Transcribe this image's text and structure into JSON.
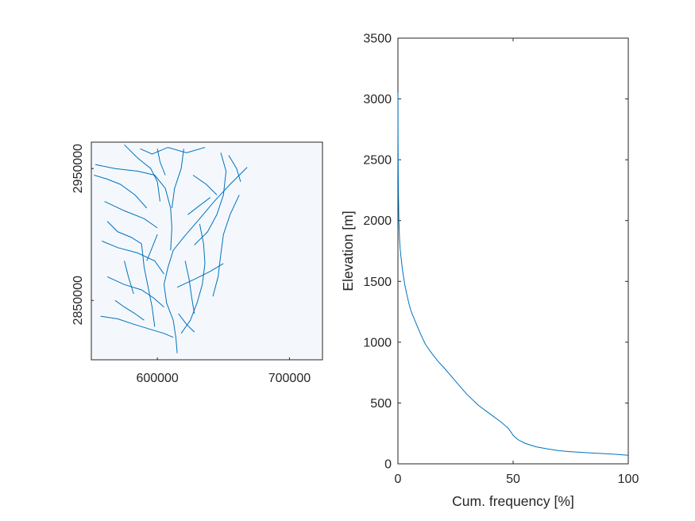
{
  "colors": {
    "stream": "#0072bd",
    "curve": "#0072bd",
    "map_bg": "#f4f8fd",
    "map_edge": "#10305a",
    "axis": "#262626"
  },
  "chart_data": [
    {
      "type": "map",
      "xlim": [
        550000,
        725000
      ],
      "ylim": [
        2805000,
        2970000
      ],
      "xticks": [
        600000,
        700000
      ],
      "xtick_labels": [
        "600000",
        "700000"
      ],
      "yticks": [
        2850000,
        2950000
      ],
      "ytick_labels": [
        "2850000",
        "2950000"
      ],
      "xlabel": "",
      "ylabel": "",
      "grid": false,
      "series": [
        {
          "values": [
            [
              668000,
              2951000
            ],
            [
              655000,
              2938000
            ],
            [
              643000,
              2925000
            ],
            [
              632000,
              2912000
            ],
            [
              620000,
              2898000
            ],
            [
              612000,
              2888000
            ],
            [
              608000,
              2875000
            ],
            [
              605000,
              2862000
            ],
            [
              607000,
              2848000
            ],
            [
              612000,
              2835000
            ],
            [
              614000,
              2822000
            ],
            [
              615000,
              2810000
            ]
          ]
        },
        {
          "values": [
            [
              553000,
              2953000
            ],
            [
              568000,
              2950000
            ],
            [
              585000,
              2948000
            ],
            [
              598000,
              2945000
            ],
            [
              606000,
              2935000
            ],
            [
              610000,
              2920000
            ],
            [
              611000,
              2905000
            ],
            [
              610000,
              2888000
            ]
          ]
        },
        {
          "values": [
            [
              575000,
              2968000
            ],
            [
              585000,
              2958000
            ],
            [
              595000,
              2950000
            ],
            [
              600000,
              2940000
            ],
            [
              602000,
              2925000
            ]
          ]
        },
        {
          "values": [
            [
              620000,
              2965000
            ],
            [
              618000,
              2950000
            ],
            [
              613000,
              2935000
            ],
            [
              611000,
              2920000
            ]
          ]
        },
        {
          "values": [
            [
              648000,
              2962000
            ],
            [
              652000,
              2948000
            ],
            [
              650000,
              2930000
            ],
            [
              645000,
              2915000
            ],
            [
              638000,
              2902000
            ],
            [
              628000,
              2892000
            ]
          ]
        },
        {
          "values": [
            [
              560000,
              2925000
            ],
            [
              575000,
              2918000
            ],
            [
              590000,
              2912000
            ],
            [
              600000,
              2905000
            ]
          ]
        },
        {
          "values": [
            [
              558000,
              2895000
            ],
            [
              570000,
              2890000
            ],
            [
              585000,
              2886000
            ],
            [
              598000,
              2880000
            ],
            [
              605000,
              2870000
            ]
          ]
        },
        {
          "values": [
            [
              562000,
              2868000
            ],
            [
              575000,
              2862000
            ],
            [
              588000,
              2858000
            ],
            [
              597000,
              2852000
            ],
            [
              605000,
              2845000
            ]
          ]
        },
        {
          "values": [
            [
              557000,
              2838000
            ],
            [
              570000,
              2836000
            ],
            [
              582000,
              2832000
            ],
            [
              595000,
              2828000
            ],
            [
              605000,
              2825000
            ],
            [
              612000,
              2822000
            ]
          ]
        },
        {
          "values": [
            [
              588000,
              2893000
            ],
            [
              590000,
              2875000
            ],
            [
              593000,
              2860000
            ],
            [
              596000,
              2845000
            ],
            [
              598000,
              2830000
            ]
          ]
        },
        {
          "values": [
            [
              632000,
              2908000
            ],
            [
              635000,
              2893000
            ],
            [
              636000,
              2878000
            ],
            [
              634000,
              2862000
            ],
            [
              630000,
              2848000
            ],
            [
              625000,
              2835000
            ],
            [
              618000,
              2825000
            ]
          ]
        },
        {
          "values": [
            [
              662000,
              2930000
            ],
            [
              655000,
              2915000
            ],
            [
              650000,
              2900000
            ],
            [
              648000,
              2885000
            ],
            [
              646000,
              2868000
            ],
            [
              642000,
              2853000
            ]
          ]
        },
        {
          "values": [
            [
              650000,
              2878000
            ],
            [
              640000,
              2872000
            ],
            [
              628000,
              2866000
            ],
            [
              615000,
              2860000
            ]
          ]
        },
        {
          "values": [
            [
              600000,
              2965000
            ],
            [
              602000,
              2955000
            ],
            [
              606000,
              2945000
            ]
          ]
        },
        {
          "values": [
            [
              627000,
              2945000
            ],
            [
              637000,
              2938000
            ],
            [
              645000,
              2930000
            ]
          ]
        },
        {
          "values": [
            [
              552000,
              2945000
            ],
            [
              562000,
              2942000
            ],
            [
              572000,
              2938000
            ],
            [
              583000,
              2930000
            ],
            [
              592000,
              2920000
            ]
          ]
        },
        {
          "values": [
            [
              562000,
              2910000
            ],
            [
              570000,
              2902000
            ],
            [
              580000,
              2898000
            ],
            [
              588000,
              2893000
            ]
          ]
        },
        {
          "values": [
            [
              575000,
              2880000
            ],
            [
              578000,
              2868000
            ],
            [
              582000,
              2855000
            ]
          ]
        },
        {
          "values": [
            [
              568000,
              2850000
            ],
            [
              575000,
              2845000
            ],
            [
              583000,
              2840000
            ],
            [
              590000,
              2835000
            ]
          ]
        },
        {
          "values": [
            [
              621000,
              2880000
            ],
            [
              624000,
              2866000
            ],
            [
              626000,
              2852000
            ],
            [
              628000,
              2840000
            ]
          ]
        },
        {
          "values": [
            [
              640000,
              2928000
            ],
            [
              632000,
              2922000
            ],
            [
              623000,
              2915000
            ]
          ]
        },
        {
          "values": [
            [
              587000,
              2965000
            ],
            [
              596000,
              2961000
            ],
            [
              608000,
              2966000
            ],
            [
              622000,
              2962000
            ],
            [
              636000,
              2966000
            ]
          ]
        },
        {
          "values": [
            [
              654000,
              2960000
            ],
            [
              660000,
              2950000
            ],
            [
              663000,
              2940000
            ]
          ]
        },
        {
          "values": [
            [
              600000,
              2900000
            ],
            [
              596000,
              2890000
            ],
            [
              592000,
              2880000
            ]
          ]
        },
        {
          "values": [
            [
              616000,
              2840000
            ],
            [
              622000,
              2832000
            ],
            [
              628000,
              2826000
            ]
          ]
        }
      ]
    },
    {
      "type": "line",
      "x": [
        0,
        0.02,
        0.05,
        0.1,
        0.2,
        0.4,
        0.7,
        1,
        1.5,
        2,
        3,
        4,
        5,
        6,
        8,
        10,
        12,
        15,
        18,
        20,
        25,
        30,
        35,
        40,
        45,
        48,
        50,
        52,
        55,
        60,
        65,
        70,
        75,
        80,
        85,
        90,
        95,
        100
      ],
      "y": [
        3050,
        2950,
        2750,
        2500,
        2250,
        2000,
        1850,
        1760,
        1670,
        1590,
        1470,
        1380,
        1300,
        1240,
        1150,
        1060,
        980,
        900,
        830,
        790,
        680,
        570,
        480,
        410,
        340,
        290,
        235,
        200,
        170,
        140,
        122,
        108,
        100,
        94,
        88,
        83,
        78,
        70
      ],
      "xlim": [
        0,
        100
      ],
      "ylim": [
        0,
        3500
      ],
      "xticks": [
        0,
        50,
        100
      ],
      "xtick_labels": [
        "0",
        "50",
        "100"
      ],
      "yticks": [
        0,
        500,
        1000,
        1500,
        2000,
        2500,
        3000,
        3500
      ],
      "ytick_labels": [
        "0",
        "500",
        "1000",
        "1500",
        "2000",
        "2500",
        "3000",
        "3500"
      ],
      "title": "",
      "xlabel": "Cum. frequency [%]",
      "ylabel": "Elevation [m]",
      "grid": false
    }
  ]
}
